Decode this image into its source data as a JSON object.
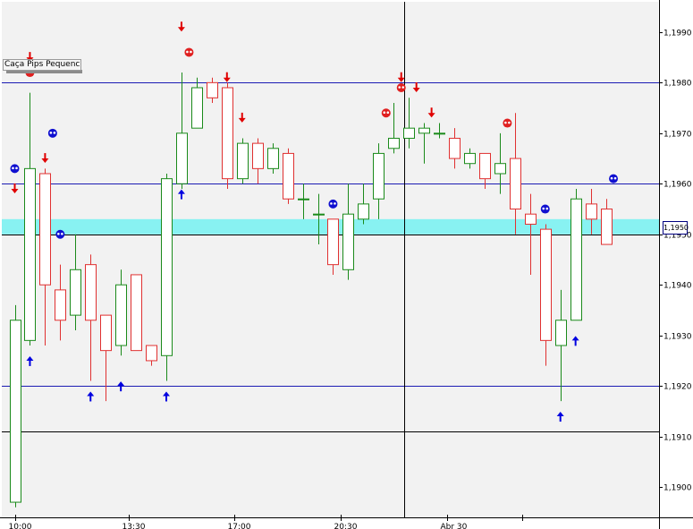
{
  "indicator": {
    "label": "Caça Pips Pequenc"
  },
  "price_tag": "1,1950",
  "colors": {
    "bull": "#1a8a1a",
    "bear": "#e03030",
    "level_line": "#1c1cb4",
    "zone": "#88f2f2",
    "down_arrow": "#e00000",
    "up_arrow": "#0000e0",
    "marker_blue": "#1010d0",
    "marker_red": "#e02020",
    "background": "#f2f2f2"
  },
  "chart_data": {
    "type": "candlestick",
    "ylim": [
      1.1894,
      1.1996
    ],
    "y_ticks": [
      {
        "value": 1.199,
        "label": "1,1990"
      },
      {
        "value": 1.198,
        "label": "1,1980"
      },
      {
        "value": 1.197,
        "label": "1,1970"
      },
      {
        "value": 1.196,
        "label": "1,1960"
      },
      {
        "value": 1.195,
        "label": "1,1950"
      },
      {
        "value": 1.194,
        "label": "1,1940"
      },
      {
        "value": 1.193,
        "label": "1,1930"
      },
      {
        "value": 1.192,
        "label": "1,1920"
      },
      {
        "value": 1.191,
        "label": "1,1910"
      },
      {
        "value": 1.19,
        "label": "1,1900"
      }
    ],
    "x_ticks": [
      {
        "index": 0,
        "label": "10:00"
      },
      {
        "index": 7.5,
        "label": "13:30"
      },
      {
        "index": 14.5,
        "label": "17:00"
      },
      {
        "index": 21.5,
        "label": "20:30"
      },
      {
        "index": 28.5,
        "label": "Abr 30"
      },
      {
        "index": 33.5,
        "label": ""
      }
    ],
    "candles": [
      {
        "o": 1.1897,
        "h": 1.1936,
        "l": 1.1896,
        "c": 1.1933
      },
      {
        "o": 1.1929,
        "h": 1.1978,
        "l": 1.1928,
        "c": 1.1963
      },
      {
        "o": 1.1962,
        "h": 1.1963,
        "l": 1.1928,
        "c": 1.194
      },
      {
        "o": 1.1939,
        "h": 1.1944,
        "l": 1.1929,
        "c": 1.1933
      },
      {
        "o": 1.1934,
        "h": 1.195,
        "l": 1.1931,
        "c": 1.1943
      },
      {
        "o": 1.1944,
        "h": 1.1946,
        "l": 1.1921,
        "c": 1.1933
      },
      {
        "o": 1.1934,
        "h": 1.1934,
        "l": 1.1917,
        "c": 1.1927
      },
      {
        "o": 1.1928,
        "h": 1.1943,
        "l": 1.1926,
        "c": 1.194
      },
      {
        "o": 1.1942,
        "h": 1.1942,
        "l": 1.1927,
        "c": 1.1927
      },
      {
        "o": 1.1928,
        "h": 1.1928,
        "l": 1.1924,
        "c": 1.1925
      },
      {
        "o": 1.1926,
        "h": 1.1962,
        "l": 1.1921,
        "c": 1.1961
      },
      {
        "o": 1.196,
        "h": 1.1982,
        "l": 1.1959,
        "c": 1.197
      },
      {
        "o": 1.1971,
        "h": 1.1981,
        "l": 1.1971,
        "c": 1.1979
      },
      {
        "o": 1.198,
        "h": 1.1981,
        "l": 1.1976,
        "c": 1.1977
      },
      {
        "o": 1.1979,
        "h": 1.198,
        "l": 1.1959,
        "c": 1.1961
      },
      {
        "o": 1.1961,
        "h": 1.1969,
        "l": 1.196,
        "c": 1.1968
      },
      {
        "o": 1.1968,
        "h": 1.1969,
        "l": 1.196,
        "c": 1.1963
      },
      {
        "o": 1.1963,
        "h": 1.1968,
        "l": 1.1962,
        "c": 1.1967
      },
      {
        "o": 1.1966,
        "h": 1.1967,
        "l": 1.1956,
        "c": 1.1957
      },
      {
        "o": 1.1957,
        "h": 1.196,
        "l": 1.1953,
        "c": 1.1957
      },
      {
        "o": 1.1954,
        "h": 1.1958,
        "l": 1.1948,
        "c": 1.1954
      },
      {
        "o": 1.1953,
        "h": 1.1953,
        "l": 1.1942,
        "c": 1.1944
      },
      {
        "o": 1.1943,
        "h": 1.196,
        "l": 1.1941,
        "c": 1.1954
      },
      {
        "o": 1.1953,
        "h": 1.196,
        "l": 1.1952,
        "c": 1.1956
      },
      {
        "o": 1.1957,
        "h": 1.1968,
        "l": 1.1953,
        "c": 1.1966
      },
      {
        "o": 1.1967,
        "h": 1.1976,
        "l": 1.1966,
        "c": 1.1969
      },
      {
        "o": 1.1969,
        "h": 1.1977,
        "l": 1.1967,
        "c": 1.1971
      },
      {
        "o": 1.197,
        "h": 1.1972,
        "l": 1.1964,
        "c": 1.1971
      },
      {
        "o": 1.197,
        "h": 1.1972,
        "l": 1.1969,
        "c": 1.197
      },
      {
        "o": 1.1969,
        "h": 1.1971,
        "l": 1.1963,
        "c": 1.1965
      },
      {
        "o": 1.1964,
        "h": 1.1967,
        "l": 1.1963,
        "c": 1.1966
      },
      {
        "o": 1.1966,
        "h": 1.1966,
        "l": 1.1959,
        "c": 1.1961
      },
      {
        "o": 1.1962,
        "h": 1.197,
        "l": 1.1958,
        "c": 1.1964
      },
      {
        "o": 1.1965,
        "h": 1.1974,
        "l": 1.195,
        "c": 1.1955
      },
      {
        "o": 1.1954,
        "h": 1.1958,
        "l": 1.1942,
        "c": 1.1952
      },
      {
        "o": 1.1951,
        "h": 1.1952,
        "l": 1.1924,
        "c": 1.1929
      },
      {
        "o": 1.1928,
        "h": 1.1939,
        "l": 1.1917,
        "c": 1.1933
      },
      {
        "o": 1.1933,
        "h": 1.1959,
        "l": 1.1933,
        "c": 1.1957
      },
      {
        "o": 1.1956,
        "h": 1.1959,
        "l": 1.195,
        "c": 1.1953
      },
      {
        "o": 1.1955,
        "h": 1.1957,
        "l": 1.1948,
        "c": 1.1948
      }
    ],
    "horizontal_lines": [
      {
        "price": 1.198,
        "style": "blue"
      },
      {
        "price": 1.196,
        "style": "blue"
      },
      {
        "price": 1.192,
        "style": "blue"
      },
      {
        "price": 1.195,
        "style": "black"
      },
      {
        "price": 1.1911,
        "style": "black"
      }
    ],
    "zone": {
      "from": 1.195,
      "to": 1.1953
    },
    "vertical_line": {
      "index": 25.7
    },
    "down_arrows": [
      {
        "index": 0,
        "price": 1.1959
      },
      {
        "index": 1,
        "price": 1.1985
      },
      {
        "index": 2,
        "price": 1.1965
      },
      {
        "index": 11,
        "price": 1.1991
      },
      {
        "index": 14,
        "price": 1.1981
      },
      {
        "index": 15,
        "price": 1.1973
      },
      {
        "index": 25.5,
        "price": 1.1981
      },
      {
        "index": 26.5,
        "price": 1.1979
      },
      {
        "index": 27.5,
        "price": 1.1974
      }
    ],
    "up_arrows": [
      {
        "index": 1,
        "price": 1.1925
      },
      {
        "index": 5,
        "price": 1.1918
      },
      {
        "index": 7,
        "price": 1.192
      },
      {
        "index": 10,
        "price": 1.1918
      },
      {
        "index": 11,
        "price": 1.1958
      },
      {
        "index": 36,
        "price": 1.1914
      },
      {
        "index": 37,
        "price": 1.1929
      }
    ],
    "markers": [
      {
        "index": 0,
        "price": 1.1963,
        "color": "blue"
      },
      {
        "index": 1,
        "price": 1.1982,
        "color": "red"
      },
      {
        "index": 2.5,
        "price": 1.197,
        "color": "blue"
      },
      {
        "index": 3,
        "price": 1.195,
        "color": "blue"
      },
      {
        "index": 11.5,
        "price": 1.1986,
        "color": "red"
      },
      {
        "index": 21,
        "price": 1.1956,
        "color": "blue"
      },
      {
        "index": 24.5,
        "price": 1.1974,
        "color": "red"
      },
      {
        "index": 25.5,
        "price": 1.1979,
        "color": "red"
      },
      {
        "index": 32.5,
        "price": 1.1972,
        "color": "red"
      },
      {
        "index": 35,
        "price": 1.1955,
        "color": "blue"
      },
      {
        "index": 39.5,
        "price": 1.1961,
        "color": "blue"
      }
    ]
  }
}
